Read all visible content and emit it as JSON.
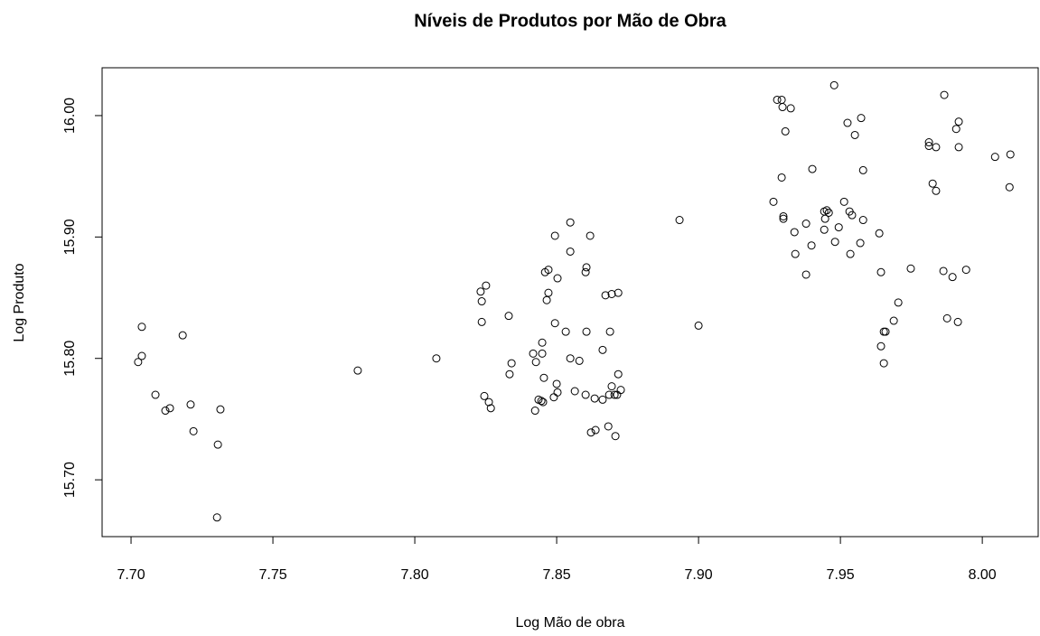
{
  "chart_data": {
    "type": "scatter",
    "title": "Níveis de Produtos por Mão de Obra",
    "x_label": "Log Mão de obra",
    "y_label": "Log Produto",
    "color": "#000000",
    "xlim": [
      7.6898,
      8.0197
    ],
    "ylim": [
      15.6532,
      16.0394
    ],
    "xticks": [
      {
        "value": 7.7,
        "label": "7.70"
      },
      {
        "value": 7.75,
        "label": "7.75"
      },
      {
        "value": 7.8,
        "label": "7.80"
      },
      {
        "value": 7.85,
        "label": "7.85"
      },
      {
        "value": 7.9,
        "label": "7.90"
      },
      {
        "value": 7.95,
        "label": "7.95"
      },
      {
        "value": 8.0,
        "label": "8.00"
      }
    ],
    "yticks": [
      {
        "value": 15.7,
        "label": "15.70"
      },
      {
        "value": 15.8,
        "label": "15.80"
      },
      {
        "value": 15.9,
        "label": "15.90"
      },
      {
        "value": 16.0,
        "label": "16.00"
      }
    ],
    "grid": false,
    "x": [
      7.7025,
      7.7038,
      7.7038,
      7.7086,
      7.7121,
      7.7137,
      7.7182,
      7.721,
      7.722,
      7.7306,
      7.7315,
      7.7303,
      7.7799,
      7.8076,
      7.8232,
      7.8251,
      7.8236,
      7.8236,
      7.8245,
      7.8261,
      7.8268,
      7.8331,
      7.8341,
      7.8334,
      7.8417,
      7.8427,
      7.8424,
      7.8436,
      7.8446,
      7.8452,
      7.8449,
      7.8449,
      7.8455,
      7.8459,
      7.8471,
      7.8465,
      7.8471,
      7.8494,
      7.8503,
      7.8494,
      7.849,
      7.85,
      7.8503,
      7.8532,
      7.8548,
      7.8548,
      7.8548,
      7.8564,
      7.858,
      7.8602,
      7.8605,
      7.8602,
      7.8618,
      7.8605,
      7.8621,
      7.8637,
      7.8634,
      7.8662,
      7.8662,
      7.8672,
      7.8682,
      7.8685,
      7.8688,
      7.8694,
      7.8694,
      7.8704,
      7.8707,
      7.8717,
      7.8717,
      7.8726,
      7.8713,
      7.8933,
      7.9,
      7.9264,
      7.9277,
      7.9293,
      7.9296,
      7.9325,
      7.9306,
      7.9293,
      7.9299,
      7.9299,
      7.9338,
      7.9341,
      7.9379,
      7.9379,
      7.9398,
      7.9401,
      7.9443,
      7.9443,
      7.9452,
      7.9459,
      7.9446,
      7.9478,
      7.9481,
      7.9494,
      7.9513,
      7.9525,
      7.9532,
      7.9541,
      7.9535,
      7.9551,
      7.9573,
      7.957,
      7.958,
      7.958,
      7.9637,
      7.9643,
      7.9643,
      7.9653,
      7.9659,
      7.9653,
      7.9688,
      7.9704,
      7.9748,
      7.9812,
      7.9812,
      7.9837,
      7.9825,
      7.9837,
      7.9866,
      7.9863,
      7.9876,
      7.9895,
      7.9908,
      7.9917,
      7.9917,
      7.9914,
      7.9943,
      8.0045,
      8.0099,
      8.0096
    ],
    "values": [
      15.797,
      15.802,
      15.826,
      15.77,
      15.757,
      15.759,
      15.819,
      15.762,
      15.74,
      15.729,
      15.758,
      15.669,
      15.79,
      15.8,
      15.855,
      15.86,
      15.847,
      15.83,
      15.769,
      15.764,
      15.759,
      15.835,
      15.796,
      15.787,
      15.804,
      15.797,
      15.757,
      15.766,
      15.765,
      15.764,
      15.813,
      15.804,
      15.784,
      15.871,
      15.873,
      15.848,
      15.854,
      15.901,
      15.866,
      15.829,
      15.768,
      15.779,
      15.772,
      15.822,
      15.912,
      15.888,
      15.8,
      15.773,
      15.798,
      15.77,
      15.875,
      15.871,
      15.901,
      15.822,
      15.739,
      15.741,
      15.767,
      15.766,
      15.807,
      15.852,
      15.744,
      15.77,
      15.822,
      15.853,
      15.777,
      15.77,
      15.736,
      15.787,
      15.854,
      15.774,
      15.77,
      15.914,
      15.827,
      15.929,
      16.013,
      16.013,
      16.007,
      16.006,
      15.987,
      15.949,
      15.917,
      15.915,
      15.904,
      15.886,
      15.911,
      15.869,
      15.893,
      15.956,
      15.906,
      15.921,
      15.922,
      15.92,
      15.915,
      16.025,
      15.896,
      15.908,
      15.929,
      15.994,
      15.921,
      15.918,
      15.886,
      15.984,
      15.998,
      15.895,
      15.914,
      15.955,
      15.903,
      15.871,
      15.81,
      15.822,
      15.822,
      15.796,
      15.831,
      15.846,
      15.874,
      15.978,
      15.975,
      15.974,
      15.944,
      15.938,
      16.017,
      15.872,
      15.833,
      15.867,
      15.989,
      15.995,
      15.974,
      15.83,
      15.873,
      15.966,
      15.968,
      15.941
    ]
  }
}
